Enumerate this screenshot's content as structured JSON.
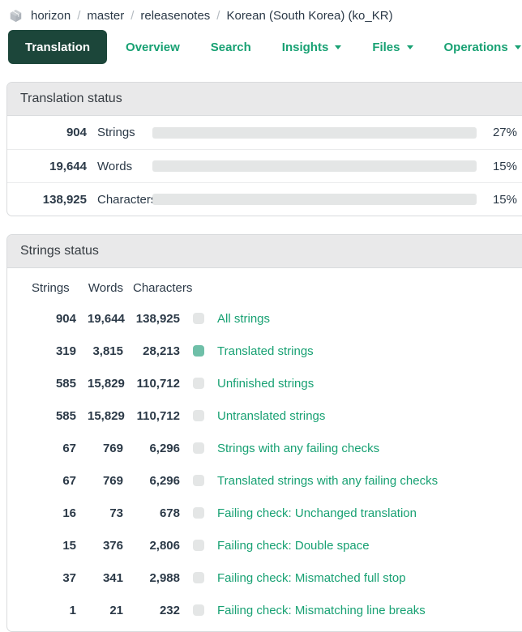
{
  "colors": {
    "link_green": "#18a173",
    "tab_active_bg": "#1c463a",
    "bar_fill_green": "#6fbfa8",
    "bar_track_gray": "#e4e6e6",
    "panel_header_bg": "#e9e9ea",
    "text_dark": "#2b3947"
  },
  "breadcrumb": {
    "icon": "cube-icon",
    "separator": "/",
    "items": [
      {
        "label": "horizon"
      },
      {
        "label": "master"
      },
      {
        "label": "releasenotes"
      },
      {
        "label": "Korean (South Korea) (ko_KR)"
      }
    ]
  },
  "tabs": [
    {
      "label": "Translation",
      "active": true,
      "dropdown": false
    },
    {
      "label": "Overview",
      "active": false,
      "dropdown": false
    },
    {
      "label": "Search",
      "active": false,
      "dropdown": false
    },
    {
      "label": "Insights",
      "active": false,
      "dropdown": true
    },
    {
      "label": "Files",
      "active": false,
      "dropdown": true
    },
    {
      "label": "Operations",
      "active": false,
      "dropdown": true
    }
  ],
  "translation_status": {
    "title": "Translation status",
    "rows": [
      {
        "value": "904",
        "label": "Strings",
        "percent": 27,
        "percent_label": "27%"
      },
      {
        "value": "19,644",
        "label": "Words",
        "percent": 15,
        "percent_label": "15%"
      },
      {
        "value": "138,925",
        "label": "Characters",
        "percent": 15,
        "percent_label": "15%"
      }
    ]
  },
  "strings_status": {
    "title": "Strings status",
    "columns": [
      "Strings",
      "Words",
      "Characters"
    ],
    "rows": [
      {
        "strings": "904",
        "words": "19,644",
        "characters": "138,925",
        "swatch": "gray",
        "label": "All strings"
      },
      {
        "strings": "319",
        "words": "3,815",
        "characters": "28,213",
        "swatch": "green",
        "label": "Translated strings"
      },
      {
        "strings": "585",
        "words": "15,829",
        "characters": "110,712",
        "swatch": "gray",
        "label": "Unfinished strings"
      },
      {
        "strings": "585",
        "words": "15,829",
        "characters": "110,712",
        "swatch": "gray",
        "label": "Untranslated strings"
      },
      {
        "strings": "67",
        "words": "769",
        "characters": "6,296",
        "swatch": "gray",
        "label": "Strings with any failing checks"
      },
      {
        "strings": "67",
        "words": "769",
        "characters": "6,296",
        "swatch": "gray",
        "label": "Translated strings with any failing checks"
      },
      {
        "strings": "16",
        "words": "73",
        "characters": "678",
        "swatch": "gray",
        "label": "Failing check: Unchanged translation"
      },
      {
        "strings": "15",
        "words": "376",
        "characters": "2,806",
        "swatch": "gray",
        "label": "Failing check: Double space"
      },
      {
        "strings": "37",
        "words": "341",
        "characters": "2,988",
        "swatch": "gray",
        "label": "Failing check: Mismatched full stop"
      },
      {
        "strings": "1",
        "words": "21",
        "characters": "232",
        "swatch": "gray",
        "label": "Failing check: Mismatching line breaks"
      }
    ]
  }
}
